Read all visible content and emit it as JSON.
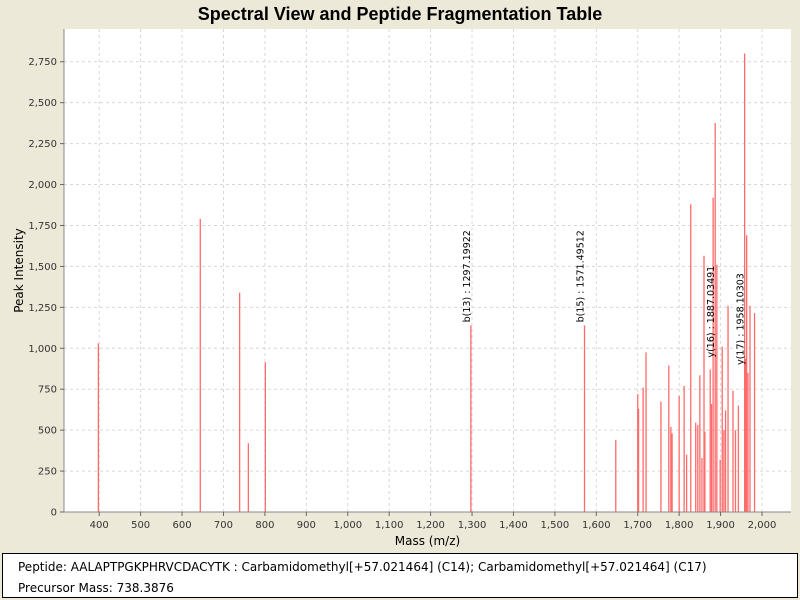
{
  "chart_data": {
    "type": "spectrum",
    "title": "Spectral View and Peptide Fragmentation Table",
    "xlabel": "Mass (m/z)",
    "ylabel": "Peak Intensity",
    "xlim": [
      315,
      2070
    ],
    "ylim": [
      0,
      2950
    ],
    "x_ticks": [
      400,
      500,
      600,
      700,
      800,
      900,
      1000,
      1100,
      1200,
      1300,
      1400,
      1500,
      1600,
      1700,
      1800,
      1900,
      2000
    ],
    "x_tick_labels": [
      "400",
      "500",
      "600",
      "700",
      "800",
      "900",
      "1,000",
      "1,100",
      "1,200",
      "1,300",
      "1,400",
      "1,500",
      "1,600",
      "1,700",
      "1,800",
      "1,900",
      "2,000"
    ],
    "y_ticks": [
      0,
      250,
      500,
      750,
      1000,
      1250,
      1500,
      1750,
      2000,
      2250,
      2500,
      2750
    ],
    "y_tick_labels": [
      "0",
      "250",
      "500",
      "750",
      "1,000",
      "1,250",
      "1,500",
      "1,750",
      "2,000",
      "2,250",
      "2,500",
      "2,750"
    ],
    "grid": true,
    "colors": {
      "peak": "#ff6a6a",
      "grid": "#d8d8d8",
      "background": "#ffffff",
      "frame": "#ECE9D8"
    },
    "peaks": [
      {
        "mz": 398,
        "intensity": 1030
      },
      {
        "mz": 644,
        "intensity": 1790
      },
      {
        "mz": 739,
        "intensity": 1340
      },
      {
        "mz": 760,
        "intensity": 420
      },
      {
        "mz": 801,
        "intensity": 915
      },
      {
        "mz": 1297.2,
        "intensity": 1140
      },
      {
        "mz": 1571.5,
        "intensity": 1140
      },
      {
        "mz": 1647,
        "intensity": 440
      },
      {
        "mz": 1700,
        "intensity": 720
      },
      {
        "mz": 1702,
        "intensity": 630
      },
      {
        "mz": 1713,
        "intensity": 760
      },
      {
        "mz": 1720,
        "intensity": 975
      },
      {
        "mz": 1756,
        "intensity": 675
      },
      {
        "mz": 1775,
        "intensity": 895
      },
      {
        "mz": 1780,
        "intensity": 520
      },
      {
        "mz": 1783,
        "intensity": 480
      },
      {
        "mz": 1800,
        "intensity": 710
      },
      {
        "mz": 1812,
        "intensity": 770
      },
      {
        "mz": 1818,
        "intensity": 350
      },
      {
        "mz": 1828,
        "intensity": 1880
      },
      {
        "mz": 1840,
        "intensity": 545
      },
      {
        "mz": 1845,
        "intensity": 530
      },
      {
        "mz": 1850,
        "intensity": 835
      },
      {
        "mz": 1855,
        "intensity": 330
      },
      {
        "mz": 1860,
        "intensity": 1565
      },
      {
        "mz": 1862,
        "intensity": 490
      },
      {
        "mz": 1875,
        "intensity": 870
      },
      {
        "mz": 1878,
        "intensity": 660
      },
      {
        "mz": 1882,
        "intensity": 1920
      },
      {
        "mz": 1887,
        "intensity": 2375
      },
      {
        "mz": 1891,
        "intensity": 1510
      },
      {
        "mz": 1899,
        "intensity": 320
      },
      {
        "mz": 1904,
        "intensity": 1010
      },
      {
        "mz": 1908,
        "intensity": 500
      },
      {
        "mz": 1912,
        "intensity": 620
      },
      {
        "mz": 1918,
        "intensity": 1260
      },
      {
        "mz": 1930,
        "intensity": 740
      },
      {
        "mz": 1936,
        "intensity": 500
      },
      {
        "mz": 1943,
        "intensity": 650
      },
      {
        "mz": 1958.1,
        "intensity": 2800
      },
      {
        "mz": 1960,
        "intensity": 935
      },
      {
        "mz": 1963,
        "intensity": 1690
      },
      {
        "mz": 1966,
        "intensity": 850
      },
      {
        "mz": 1971,
        "intensity": 1260
      },
      {
        "mz": 1982,
        "intensity": 1215
      }
    ],
    "annotations": [
      {
        "label": "b(13) : 1297.19922",
        "mz": 1297.2,
        "intensity": 1140
      },
      {
        "label": "b(15) : 1571.49512",
        "mz": 1571.5,
        "intensity": 1140
      },
      {
        "label": "y(16) : 1887.03491",
        "mz": 1887,
        "intensity": 925
      },
      {
        "label": "y(17) : 1958.10303",
        "mz": 1958.1,
        "intensity": 880
      }
    ]
  },
  "info": {
    "peptide": "Peptide: AALAPTPGKPHRVCDACYTK : Carbamidomethyl[+57.021464] (C14); Carbamidomethyl[+57.021464] (C17)",
    "precursor": "Precursor Mass: 738.3876"
  }
}
